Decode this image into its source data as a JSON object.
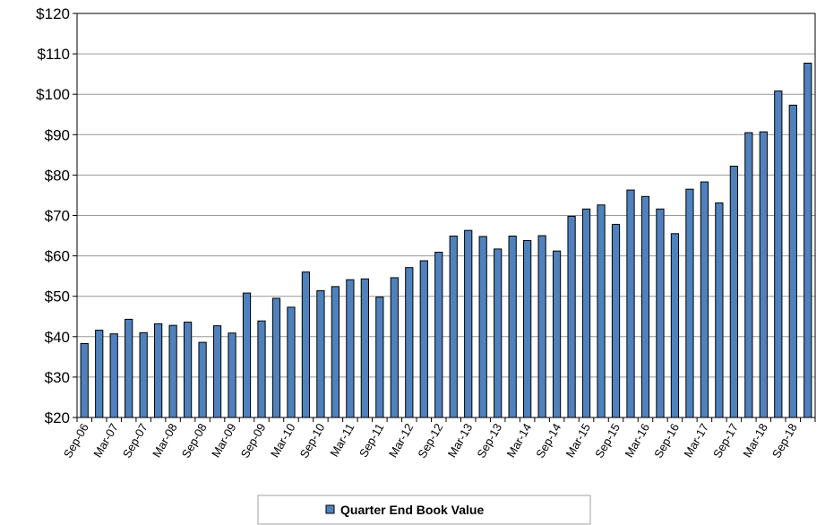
{
  "chart_data": {
    "type": "bar",
    "title": "",
    "xlabel": "",
    "ylabel": "",
    "ylim": [
      20,
      120
    ],
    "y_ticks": [
      "$20",
      "$30",
      "$40",
      "$50",
      "$60",
      "$70",
      "$80",
      "$90",
      "$100",
      "$110",
      "$120"
    ],
    "y_tick_values": [
      20,
      30,
      40,
      50,
      60,
      70,
      80,
      90,
      100,
      110,
      120
    ],
    "grid": true,
    "legend_position": "bottom-center",
    "colors": {
      "bar_fill": "#4F81BD",
      "bar_stroke": "#000000",
      "grid": "#999999",
      "axis": "#000000"
    },
    "categories": [
      "Sep-06",
      "Dec-06",
      "Mar-07",
      "Jun-07",
      "Sep-07",
      "Dec-07",
      "Mar-08",
      "Jun-08",
      "Sep-08",
      "Dec-08",
      "Mar-09",
      "Jun-09",
      "Sep-09",
      "Dec-09",
      "Mar-10",
      "Jun-10",
      "Sep-10",
      "Dec-10",
      "Mar-11",
      "Jun-11",
      "Sep-11",
      "Dec-11",
      "Mar-12",
      "Jun-12",
      "Sep-12",
      "Dec-12",
      "Mar-13",
      "Jun-13",
      "Sep-13",
      "Dec-13",
      "Mar-14",
      "Jun-14",
      "Sep-14",
      "Dec-14",
      "Mar-15",
      "Jun-15",
      "Sep-15",
      "Dec-15",
      "Mar-16",
      "Jun-16",
      "Sep-16",
      "Dec-16",
      "Mar-17",
      "Jun-17",
      "Sep-17",
      "Dec-17",
      "Mar-18",
      "Jun-18",
      "Sep-18",
      "Dec-18"
    ],
    "x_tick_labels": [
      "Sep-06",
      "Mar-07",
      "Sep-07",
      "Mar-08",
      "Sep-08",
      "Mar-09",
      "Sep-09",
      "Mar-10",
      "Sep-10",
      "Mar-11",
      "Sep-11",
      "Mar-12",
      "Sep-12",
      "Mar-13",
      "Sep-13",
      "Mar-14",
      "Sep-14",
      "Mar-15",
      "Sep-15",
      "Mar-16",
      "Sep-16",
      "Mar-17",
      "Sep-17",
      "Mar-18",
      "Sep-18"
    ],
    "series": [
      {
        "name": "Quarter End Book Value",
        "values": [
          38.3,
          41.6,
          40.7,
          44.3,
          41.0,
          43.2,
          42.8,
          43.6,
          38.6,
          42.7,
          40.9,
          50.8,
          43.9,
          49.5,
          47.3,
          56.0,
          51.4,
          52.4,
          54.1,
          54.3,
          49.8,
          54.6,
          57.1,
          58.8,
          60.9,
          64.9,
          66.3,
          64.8,
          61.7,
          64.9,
          63.8,
          65.0,
          61.2,
          69.8,
          71.6,
          72.6,
          67.8,
          76.3,
          74.7,
          71.6,
          65.5,
          76.5,
          78.3,
          73.1,
          82.2,
          90.5,
          90.7,
          100.8,
          97.3,
          107.7
        ]
      }
    ]
  }
}
